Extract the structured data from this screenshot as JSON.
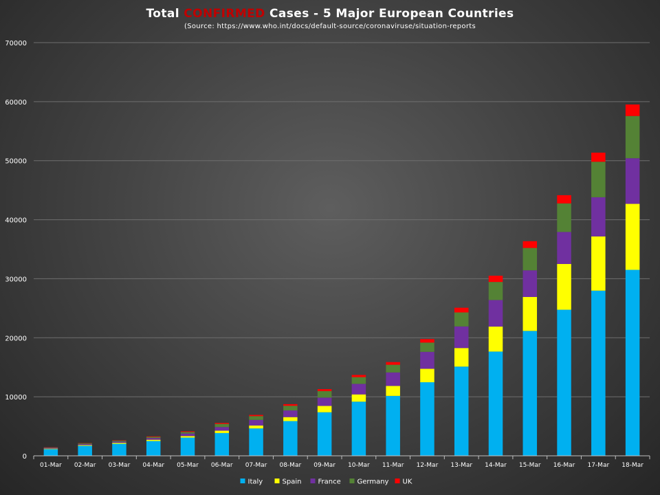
{
  "chart_data": {
    "type": "bar",
    "stacked": true,
    "title_parts": [
      "Total ",
      "CONFIRMED",
      " Cases - 5 Major European Countries"
    ],
    "subtitle": "(Source: https://www.who.int/docs/default-source/coronaviruse/situation-reports",
    "categories": [
      "01-Mar",
      "02-Mar",
      "03-Mar",
      "04-Mar",
      "05-Mar",
      "06-Mar",
      "07-Mar",
      "08-Mar",
      "09-Mar",
      "10-Mar",
      "11-Mar",
      "12-Mar",
      "13-Mar",
      "14-Mar",
      "15-Mar",
      "16-Mar",
      "17-Mar",
      "18-Mar"
    ],
    "ylim": [
      0,
      70000
    ],
    "yticks": [
      0,
      10000,
      20000,
      30000,
      40000,
      50000,
      60000,
      70000
    ],
    "grid": true,
    "legend_position": "bottom",
    "series": [
      {
        "name": "Italy",
        "color": "#00b0f0",
        "values": [
          1128,
          1694,
          2036,
          2502,
          3089,
          3858,
          4636,
          5883,
          7375,
          9172,
          10149,
          12462,
          15113,
          17660,
          21157,
          24747,
          27980,
          31506
        ]
      },
      {
        "name": "Spain",
        "color": "#ffff00",
        "values": [
          84,
          120,
          165,
          222,
          259,
          400,
          500,
          673,
          1073,
          1231,
          1695,
          2277,
          3146,
          4231,
          5753,
          7753,
          9191,
          11178
        ]
      },
      {
        "name": "France",
        "color": "#7030a0",
        "values": [
          130,
          191,
          212,
          285,
          423,
          613,
          949,
          1126,
          1412,
          1784,
          2281,
          2876,
          3661,
          4499,
          4513,
          5423,
          6633,
          7730
        ]
      },
      {
        "name": "Germany",
        "color": "#548235",
        "values": [
          79,
          129,
          157,
          196,
          262,
          534,
          639,
          795,
          1112,
          1139,
          1296,
          1567,
          2369,
          3062,
          3795,
          4838,
          6012,
          7156
        ]
      },
      {
        "name": "UK",
        "color": "#ff0000",
        "values": [
          36,
          40,
          51,
          85,
          115,
          163,
          206,
          273,
          321,
          373,
          456,
          590,
          797,
          1061,
          1140,
          1391,
          1543,
          1950
        ]
      }
    ]
  }
}
